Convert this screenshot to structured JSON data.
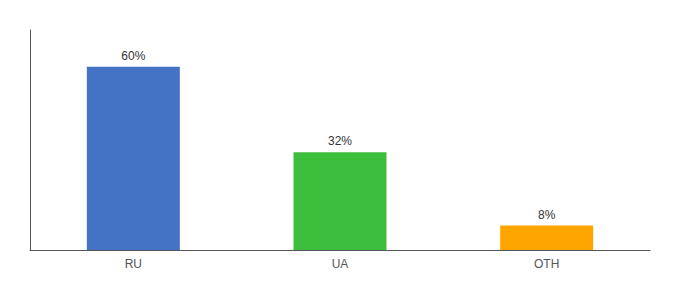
{
  "chart_data": {
    "type": "bar",
    "categories": [
      "RU",
      "UA",
      "OTH"
    ],
    "values": [
      60,
      32,
      8
    ],
    "value_labels": [
      "60%",
      "32%",
      "8%"
    ],
    "colors": [
      "#4472C4",
      "#3DBE3D",
      "#FFA500"
    ],
    "ylim": [
      0,
      72
    ],
    "grid": false,
    "data_labels": true,
    "tick_labels": "x"
  }
}
